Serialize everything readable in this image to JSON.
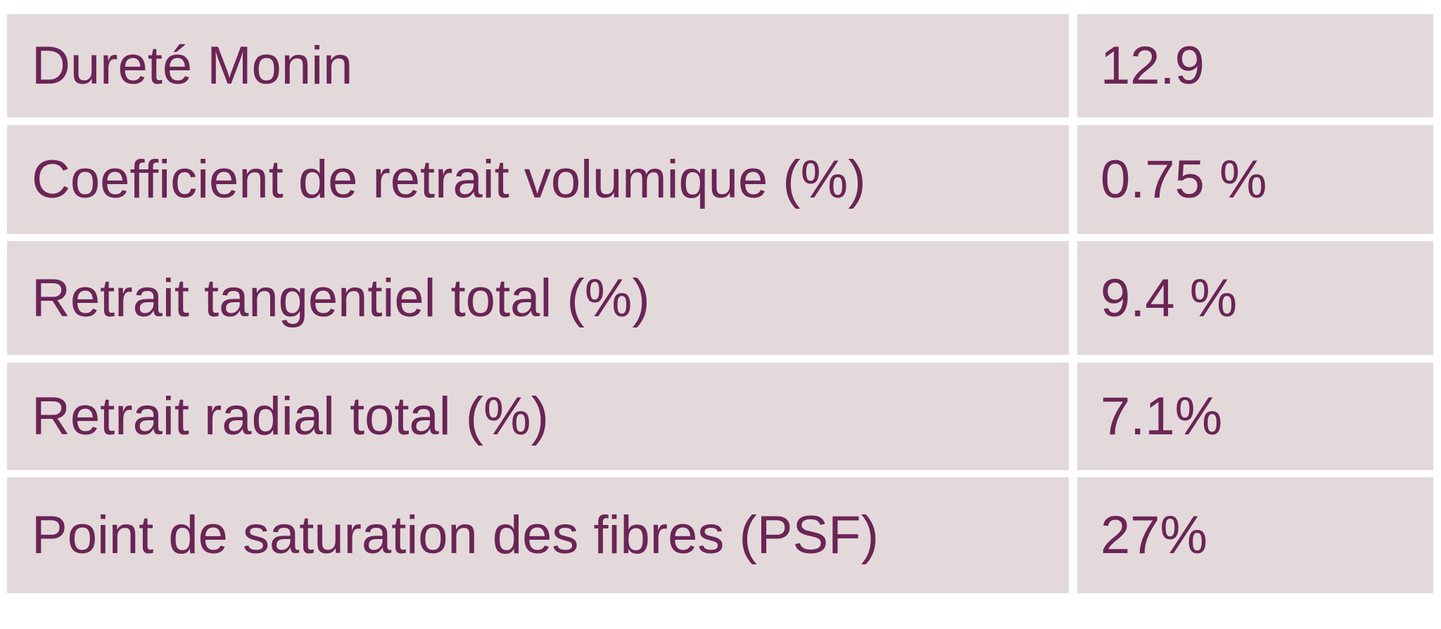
{
  "table": {
    "rows": [
      [
        "Dureté Monin",
        "12.9"
      ],
      [
        "Coefficient de retrait volumique (%)",
        "0.75 %"
      ],
      [
        "Retrait tangentiel total (%)",
        "9.4 %"
      ],
      [
        "Retrait radial total (%)",
        "7.1%"
      ],
      [
        "Point de saturation des fibres (PSF)",
        "27%"
      ]
    ]
  }
}
